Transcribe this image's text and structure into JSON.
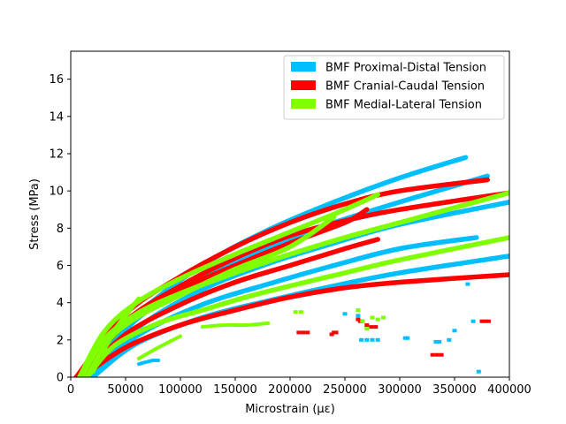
{
  "chart_data": {
    "type": "scatter",
    "title": "",
    "xlabel": "Microstrain (με)",
    "ylabel": "Stress (MPa)",
    "xlim": [
      0,
      400000
    ],
    "ylim": [
      0,
      17.5
    ],
    "x_ticks": [
      0,
      50000,
      100000,
      150000,
      200000,
      250000,
      300000,
      350000,
      400000
    ],
    "x_tick_labels": [
      "0",
      "50000",
      "100000",
      "150000",
      "200000",
      "250000",
      "300000",
      "350000",
      "400000"
    ],
    "y_ticks": [
      0,
      2,
      4,
      6,
      8,
      10,
      12,
      14,
      16
    ],
    "y_tick_labels": [
      "0",
      "2",
      "4",
      "6",
      "8",
      "10",
      "12",
      "14",
      "16"
    ],
    "grid": false,
    "legend_position": "top-right",
    "series": [
      {
        "name": "BMF Proximal-Distal Tension",
        "color": "#00bfff",
        "curves": [
          {
            "x": [
              15000,
              60000,
              120000,
              180000,
              240000,
              300000,
              360000
            ],
            "y": [
              0,
              3.3,
              6.0,
              7.9,
              9.4,
              10.7,
              11.8
            ]
          },
          {
            "x": [
              15000,
              60000,
              120000,
              180000,
              240000,
              300000,
              380000
            ],
            "y": [
              0,
              3.1,
              5.4,
              7.0,
              8.3,
              9.4,
              10.8
            ]
          },
          {
            "x": [
              20000,
              60000,
              120000,
              180000,
              240000,
              300000,
              400000
            ],
            "y": [
              0,
              2.6,
              4.7,
              6.1,
              7.2,
              8.2,
              9.4
            ]
          },
          {
            "x": [
              18000,
              60000,
              120000,
              180000,
              240000,
              300000,
              370000
            ],
            "y": [
              0,
              2.2,
              3.9,
              5.0,
              6.0,
              6.9,
              7.5
            ]
          },
          {
            "x": [
              20000,
              60000,
              120000,
              180000,
              240000,
              300000,
              400000
            ],
            "y": [
              0,
              1.8,
              3.2,
              4.1,
              4.9,
              5.6,
              6.5
            ]
          },
          {
            "x": [
              62000,
              68000,
              75000,
              80000
            ],
            "y": [
              0.7,
              0.8,
              0.9,
              0.9
            ]
          }
        ],
        "scatter": [
          {
            "x": [
              250000,
              262000
            ],
            "y": [
              3.4,
              3.3
            ]
          },
          {
            "x": [
              265000,
              270000,
              275000,
              280000
            ],
            "y": [
              2.0,
              2.0,
              2.0,
              2.0
            ]
          },
          {
            "x": [
              305000,
              307000
            ],
            "y": [
              2.1,
              2.1
            ]
          },
          {
            "x": [
              333000,
              336000
            ],
            "y": [
              1.9,
              1.9
            ]
          },
          {
            "x": [
              362000,
              367000,
              372000
            ],
            "y": [
              5.0,
              3.0,
              0.3
            ]
          },
          {
            "x": [
              345000,
              350000
            ],
            "y": [
              2.0,
              2.5
            ]
          }
        ]
      },
      {
        "name": "BMF Cranial-Caudal Tension",
        "color": "#ff0000",
        "curves": [
          {
            "x": [
              5000,
              50000,
              100000,
              150000,
              200000,
              250000,
              300000,
              380000
            ],
            "y": [
              0,
              3.4,
              5.4,
              7.0,
              8.3,
              9.3,
              10.0,
              10.6
            ]
          },
          {
            "x": [
              5000,
              50000,
              100000,
              150000,
              200000,
              250000,
              300000,
              400000
            ],
            "y": [
              0,
              3.0,
              4.9,
              6.4,
              7.6,
              8.4,
              9.0,
              9.9
            ]
          },
          {
            "x": [
              8000,
              50000,
              100000,
              150000,
              200000,
              250000,
              270000
            ],
            "y": [
              0,
              2.9,
              4.7,
              6.0,
              7.2,
              8.3,
              9.0
            ]
          },
          {
            "x": [
              10000,
              50000,
              100000,
              150000,
              200000,
              250000,
              280000
            ],
            "y": [
              0,
              2.3,
              3.9,
              5.1,
              6.0,
              6.9,
              7.4
            ]
          },
          {
            "x": [
              10000,
              50000,
              100000,
              150000,
              200000,
              250000,
              300000,
              400000
            ],
            "y": [
              0,
              1.6,
              2.8,
              3.6,
              4.3,
              4.8,
              5.1,
              5.5
            ]
          }
        ],
        "scatter": [
          {
            "x": [
              208000,
              212000,
              216000
            ],
            "y": [
              2.4,
              2.4,
              2.4
            ]
          },
          {
            "x": [
              238000,
              240000,
              242000
            ],
            "y": [
              2.3,
              2.4,
              2.4
            ]
          },
          {
            "x": [
              262000,
              264000,
              266000
            ],
            "y": [
              3.1,
              3.0,
              3.0
            ]
          },
          {
            "x": [
              270000,
              274000,
              278000
            ],
            "y": [
              2.8,
              2.7,
              2.7
            ]
          },
          {
            "x": [
              330000,
              334000,
              338000
            ],
            "y": [
              1.2,
              1.2,
              1.2
            ]
          },
          {
            "x": [
              375000,
              378000,
              381000
            ],
            "y": [
              3.0,
              3.0,
              3.0
            ]
          }
        ]
      },
      {
        "name": "BMF Medial-Lateral Tension",
        "color": "#7fff00",
        "curves": [
          {
            "x": [
              8000,
              30000,
              60000,
              100000,
              150000,
              200000,
              250000,
              280000
            ],
            "y": [
              0,
              2.4,
              4.0,
              5.3,
              6.6,
              7.8,
              9.0,
              9.8
            ]
          },
          {
            "x": [
              10000,
              30000,
              60000,
              100000,
              150000,
              200000,
              250000,
              300000,
              400000
            ],
            "y": [
              0,
              2.0,
              3.4,
              4.5,
              5.6,
              6.6,
              7.5,
              8.3,
              9.9
            ]
          },
          {
            "x": [
              15000,
              35000,
              60000,
              100000,
              150000,
              200000,
              240000
            ],
            "y": [
              0,
              2.0,
              3.2,
              4.4,
              5.8,
              7.0,
              8.6
            ]
          },
          {
            "x": [
              15000,
              40000,
              80000,
              120000,
              160000,
              200000,
              250000,
              300000,
              400000
            ],
            "y": [
              0,
              1.7,
              2.9,
              3.6,
              4.3,
              4.9,
              5.6,
              6.3,
              7.5
            ]
          },
          {
            "x": [
              20000,
              40000,
              62000
            ],
            "y": [
              0.3,
              2.5,
              4.2
            ]
          },
          {
            "x": [
              120000,
              140000,
              160000,
              180000
            ],
            "y": [
              2.7,
              2.8,
              2.8,
              2.9
            ]
          },
          {
            "x": [
              62000,
              80000,
              100000
            ],
            "y": [
              1.0,
              1.6,
              2.2
            ]
          }
        ],
        "scatter": [
          {
            "x": [
              205000,
              210000
            ],
            "y": [
              3.5,
              3.5
            ]
          },
          {
            "x": [
              262000,
              266000,
              270000
            ],
            "y": [
              3.6,
              3.0,
              2.6
            ]
          },
          {
            "x": [
              275000,
              280000,
              285000
            ],
            "y": [
              3.2,
              3.1,
              3.2
            ]
          }
        ]
      }
    ]
  }
}
